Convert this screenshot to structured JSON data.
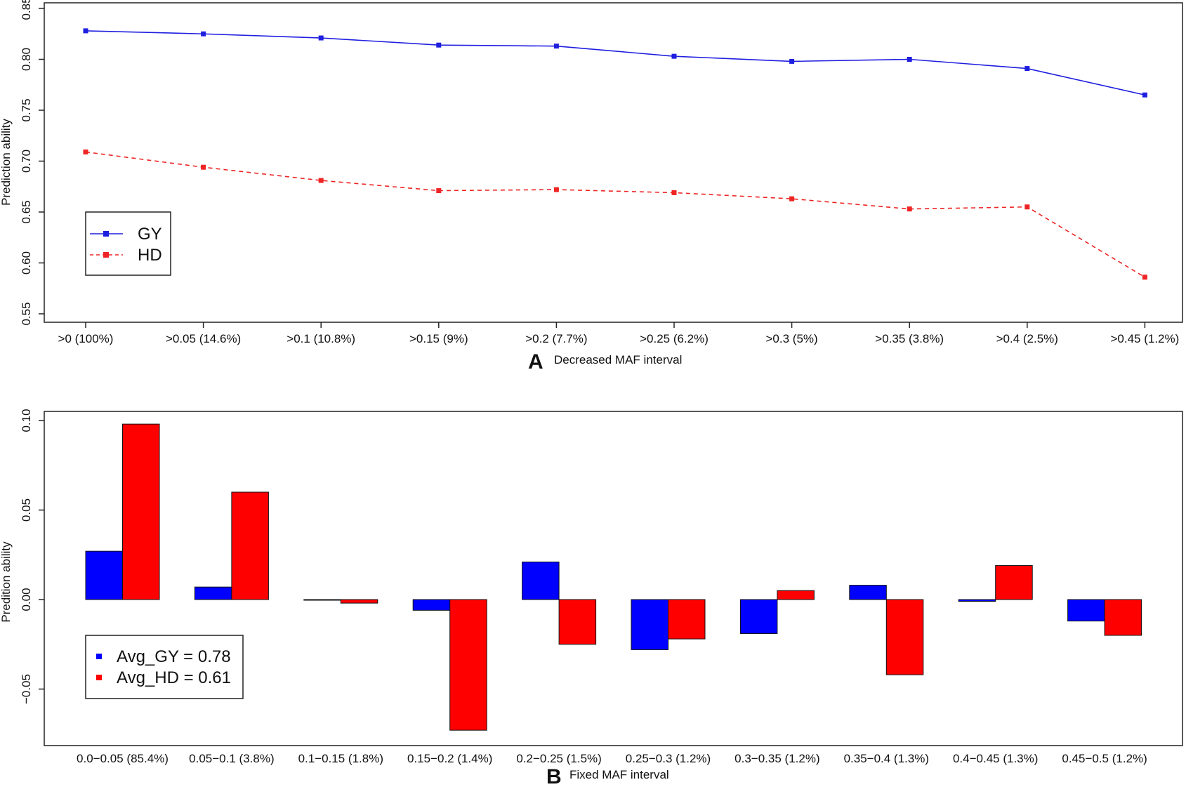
{
  "chart_data": [
    {
      "type": "line",
      "panel_letter": "A",
      "xlabel": "Decreased MAF interval",
      "ylabel": "Prediction ability",
      "ylim": [
        0.55,
        0.85
      ],
      "yticks": [
        "0.55",
        "0.60",
        "0.65",
        "0.70",
        "0.75",
        "0.80",
        "0.85"
      ],
      "categories": [
        ">0 (100%)",
        ">0.05 (14.6%)",
        ">0.1 (10.8%)",
        ">0.15 (9%)",
        ">0.2 (7.7%)",
        ">0.25 (6.2%)",
        ">0.3 (5%)",
        ">0.35 (3.8%)",
        ">0.4 (2.5%)",
        ">0.45 (1.2%)"
      ],
      "series": [
        {
          "name": "GY",
          "color": "#1f1fe0",
          "style": "solid",
          "values": [
            0.828,
            0.825,
            0.821,
            0.814,
            0.813,
            0.803,
            0.798,
            0.8,
            0.791,
            0.765
          ]
        },
        {
          "name": "HD",
          "color": "#ef2424",
          "style": "dashed",
          "values": [
            0.709,
            0.694,
            0.681,
            0.671,
            0.672,
            0.669,
            0.663,
            0.653,
            0.655,
            0.586
          ]
        }
      ],
      "legend": [
        "GY",
        "HD"
      ]
    },
    {
      "type": "bar",
      "panel_letter": "B",
      "xlabel": "Fixed MAF interval",
      "ylabel": "Predition ability",
      "ylim": [
        -0.08,
        0.1
      ],
      "yticks": [
        "−0.05",
        "0.00",
        "0.05",
        "0.10"
      ],
      "categories": [
        "0.0−0.05 (85.4%)",
        "0.05−0.1 (3.8%)",
        "0.1−0.15 (1.8%)",
        "0.15−0.2 (1.4%)",
        "0.2−0.25 (1.5%)",
        "0.25−0.3 (1.2%)",
        "0.3−0.35 (1.2%)",
        "0.35−0.4 (1.3%)",
        "0.4−0.45 (1.3%)",
        "0.45−0.5 (1.2%)"
      ],
      "series": [
        {
          "name": "GY",
          "color": "#0000ff",
          "values": [
            0.027,
            0.007,
            0.0,
            -0.006,
            0.021,
            -0.028,
            -0.019,
            0.008,
            -0.001,
            -0.012
          ]
        },
        {
          "name": "HD",
          "color": "#ff0000",
          "values": [
            0.098,
            0.06,
            -0.002,
            -0.073,
            -0.025,
            -0.022,
            0.005,
            -0.042,
            0.019,
            -0.02
          ]
        }
      ],
      "legend": [
        "Avg_GY = 0.78",
        "Avg_HD = 0.61"
      ]
    }
  ]
}
